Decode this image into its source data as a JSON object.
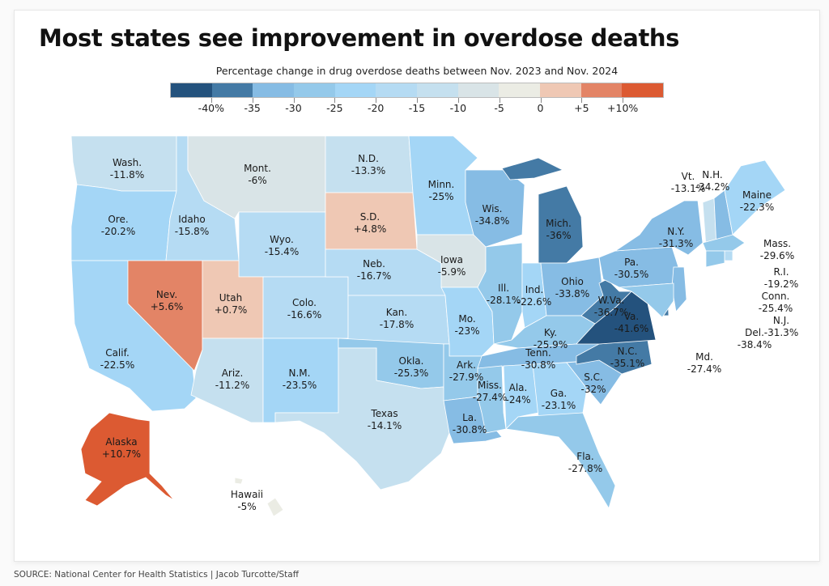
{
  "header": {
    "title": "Most states see improvement in overdose deaths",
    "subtitle": "Percentage change in drug overdose deaths between Nov. 2023 and Nov. 2024"
  },
  "footer": {
    "source": "SOURCE: National Center for Health Statistics | Jacob Turcotte/Staff"
  },
  "legend": {
    "bins": [
      {
        "min": -45,
        "max": -40,
        "color": "#24527d"
      },
      {
        "min": -40,
        "max": -35,
        "color": "#447aa5"
      },
      {
        "min": -35,
        "max": -30,
        "color": "#86bce4"
      },
      {
        "min": -30,
        "max": -25,
        "color": "#94c9ea"
      },
      {
        "min": -25,
        "max": -20,
        "color": "#a4d6f6"
      },
      {
        "min": -20,
        "max": -15,
        "color": "#b5dbf3"
      },
      {
        "min": -15,
        "max": -10,
        "color": "#c5e0ef"
      },
      {
        "min": -10,
        "max": -5,
        "color": "#d9e4e7"
      },
      {
        "min": -5,
        "max": 0,
        "color": "#ebece4"
      },
      {
        "min": 0,
        "max": 5,
        "color": "#efc8b4"
      },
      {
        "min": 5,
        "max": 10,
        "color": "#e38466"
      },
      {
        "min": 10,
        "max": 15,
        "color": "#dc5a32"
      }
    ],
    "ticks": [
      "-40%",
      "-35",
      "-30",
      "-25",
      "-20",
      "-15",
      "-10",
      "-5",
      "0",
      "+5",
      "+10%"
    ]
  },
  "chart_data": {
    "type": "choropleth",
    "title": "Most states see improvement in overdose deaths",
    "subtitle": "Percentage change in drug overdose deaths between Nov. 2023 and Nov. 2024",
    "unit": "%",
    "color_scale": {
      "min": -45,
      "max": 15,
      "step": 5
    },
    "legend_position": "top-center",
    "source": "SOURCE: National Center for Health Statistics | Jacob Turcotte/Staff",
    "states": [
      {
        "id": "WA",
        "label": "Wash.",
        "value": -11.8,
        "display": "-11.8%"
      },
      {
        "id": "OR",
        "label": "Ore.",
        "value": -20.2,
        "display": "-20.2%"
      },
      {
        "id": "CA",
        "label": "Calif.",
        "value": -22.5,
        "display": "-22.5%"
      },
      {
        "id": "ID",
        "label": "Idaho",
        "value": -15.8,
        "display": "-15.8%"
      },
      {
        "id": "NV",
        "label": "Nev.",
        "value": 5.6,
        "display": "+5.6%"
      },
      {
        "id": "MT",
        "label": "Mont.",
        "value": -6,
        "display": "-6%"
      },
      {
        "id": "WY",
        "label": "Wyo.",
        "value": -15.4,
        "display": "-15.4%"
      },
      {
        "id": "UT",
        "label": "Utah",
        "value": 0.7,
        "display": "+0.7%"
      },
      {
        "id": "AZ",
        "label": "Ariz.",
        "value": -11.2,
        "display": "-11.2%"
      },
      {
        "id": "CO",
        "label": "Colo.",
        "value": -16.6,
        "display": "-16.6%"
      },
      {
        "id": "NM",
        "label": "N.M.",
        "value": -23.5,
        "display": "-23.5%"
      },
      {
        "id": "ND",
        "label": "N.D.",
        "value": -13.3,
        "display": "-13.3%"
      },
      {
        "id": "SD",
        "label": "S.D.",
        "value": 4.8,
        "display": "+4.8%"
      },
      {
        "id": "NE",
        "label": "Neb.",
        "value": -16.7,
        "display": "-16.7%"
      },
      {
        "id": "KS",
        "label": "Kan.",
        "value": -17.8,
        "display": "-17.8%"
      },
      {
        "id": "OK",
        "label": "Okla.",
        "value": -25.3,
        "display": "-25.3%"
      },
      {
        "id": "TX",
        "label": "Texas",
        "value": -14.1,
        "display": "-14.1%"
      },
      {
        "id": "MN",
        "label": "Minn.",
        "value": -25,
        "display": "-25%"
      },
      {
        "id": "IA",
        "label": "Iowa",
        "value": -5.9,
        "display": "-5.9%"
      },
      {
        "id": "MO",
        "label": "Mo.",
        "value": -23,
        "display": "-23%"
      },
      {
        "id": "AR",
        "label": "Ark.",
        "value": -27.9,
        "display": "-27.9%"
      },
      {
        "id": "LA",
        "label": "La.",
        "value": -30.8,
        "display": "-30.8%"
      },
      {
        "id": "WI",
        "label": "Wis.",
        "value": -34.8,
        "display": "-34.8%"
      },
      {
        "id": "IL",
        "label": "Ill.",
        "value": -28.1,
        "display": "-28.1%"
      },
      {
        "id": "MI",
        "label": "Mich.",
        "value": -36,
        "display": "-36%"
      },
      {
        "id": "IN",
        "label": "Ind.",
        "value": -22.6,
        "display": "-22.6%"
      },
      {
        "id": "OH",
        "label": "Ohio",
        "value": -33.8,
        "display": "-33.8%"
      },
      {
        "id": "KY",
        "label": "Ky.",
        "value": -25.9,
        "display": "-25.9%"
      },
      {
        "id": "TN",
        "label": "Tenn.",
        "value": -30.8,
        "display": "-30.8%"
      },
      {
        "id": "MS",
        "label": "Miss.",
        "value": -27.4,
        "display": "-27.4%"
      },
      {
        "id": "AL",
        "label": "Ala.",
        "value": -24,
        "display": "-24%"
      },
      {
        "id": "GA",
        "label": "Ga.",
        "value": -23.1,
        "display": "-23.1%"
      },
      {
        "id": "FL",
        "label": "Fla.",
        "value": -27.8,
        "display": "-27.8%"
      },
      {
        "id": "SC",
        "label": "S.C.",
        "value": -32,
        "display": "-32%"
      },
      {
        "id": "NC",
        "label": "N.C.",
        "value": -35.1,
        "display": "-35.1%"
      },
      {
        "id": "VA",
        "label": "Va.",
        "value": -41.6,
        "display": "-41.6%"
      },
      {
        "id": "WV",
        "label": "W.Va.",
        "value": -36.7,
        "display": "-36.7%"
      },
      {
        "id": "PA",
        "label": "Pa.",
        "value": -30.5,
        "display": "-30.5%"
      },
      {
        "id": "NY",
        "label": "N.Y.",
        "value": -31.3,
        "display": "-31.3%"
      },
      {
        "id": "VT",
        "label": "Vt.",
        "value": -13.1,
        "display": "-13.1%"
      },
      {
        "id": "NH",
        "label": "N.H.",
        "value": -34.2,
        "display": "-34.2%"
      },
      {
        "id": "ME",
        "label": "Maine",
        "value": -22.3,
        "display": "-22.3%"
      },
      {
        "id": "MA",
        "label": "Mass.",
        "value": -29.6,
        "display": "-29.6%"
      },
      {
        "id": "RI",
        "label": "R.I.",
        "value": -19.2,
        "display": "-19.2%"
      },
      {
        "id": "CT",
        "label": "Conn.",
        "value": -25.4,
        "display": "-25.4%"
      },
      {
        "id": "NJ",
        "label": "N.J.",
        "value": -31.3,
        "display": "-31.3%"
      },
      {
        "id": "DE",
        "label": "Del.",
        "value": -38.4,
        "display": "-38.4%"
      },
      {
        "id": "MD",
        "label": "Md.",
        "value": -27.4,
        "display": "-27.4%"
      },
      {
        "id": "AK",
        "label": "Alaska",
        "value": 10.7,
        "display": "+10.7%"
      },
      {
        "id": "HI",
        "label": "Hawaii",
        "value": -5,
        "display": "-5%"
      }
    ]
  }
}
